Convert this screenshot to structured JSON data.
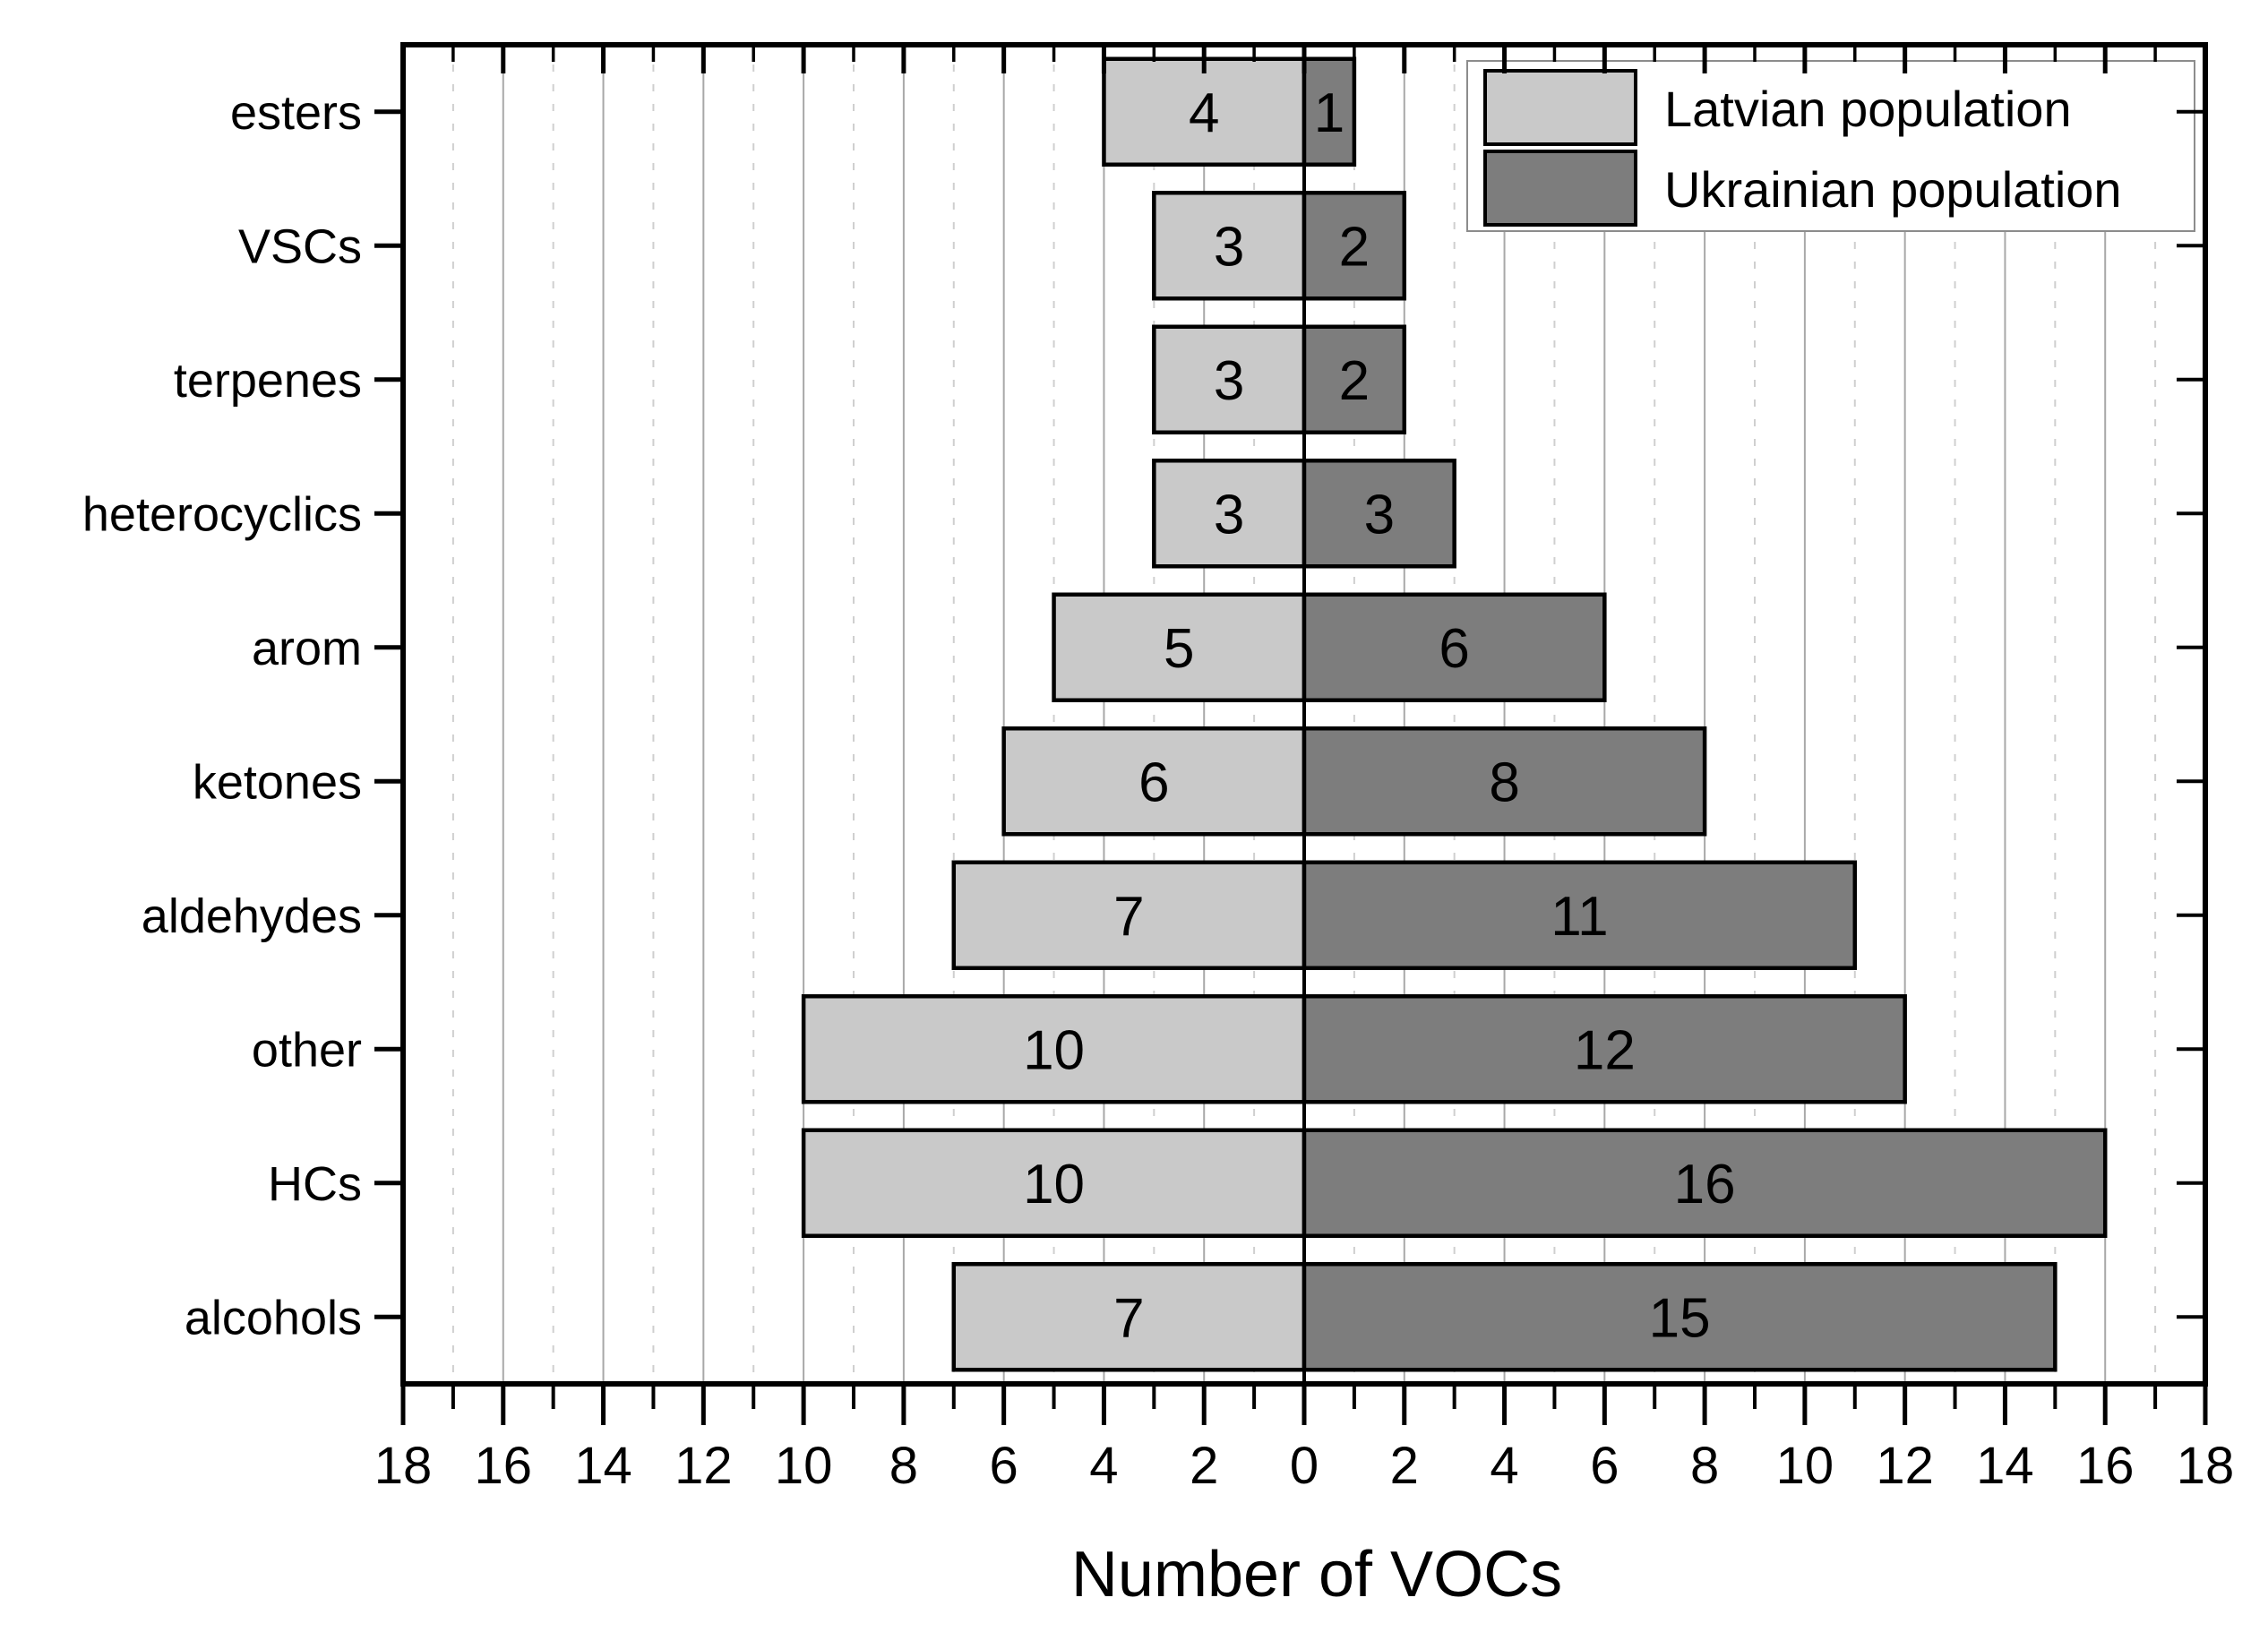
{
  "chart_data": {
    "type": "bar",
    "subtype": "diverging-horizontal",
    "categories": [
      "esters",
      "VSCs",
      "terpenes",
      "heterocyclics",
      "arom",
      "ketones",
      "aldehydes",
      "other",
      "HCs",
      "alcohols"
    ],
    "series": [
      {
        "name": "Latvian population",
        "side": "left",
        "color": "#c9c9c9",
        "values": [
          4,
          3,
          3,
          3,
          5,
          6,
          7,
          10,
          10,
          7
        ]
      },
      {
        "name": "Ukrainian population",
        "side": "right",
        "color": "#7d7d7d",
        "values": [
          1,
          2,
          2,
          3,
          6,
          8,
          11,
          12,
          16,
          15
        ]
      }
    ],
    "xlabel": "Number of VOCs",
    "x_tick_labels": [
      "18",
      "16",
      "14",
      "12",
      "10",
      "8",
      "6",
      "4",
      "2",
      "0",
      "2",
      "4",
      "6",
      "8",
      "10",
      "12",
      "14",
      "16",
      "18"
    ],
    "xlim": [
      -18,
      18
    ],
    "x_tick_step": 2,
    "grid": {
      "solid_at": "even",
      "dashed_at": "odd",
      "solid_color": "#a8a8a8",
      "dashed_color": "#cfcfcf"
    },
    "bar_border_color": "#000000",
    "zero_line_color": "#000000",
    "value_label_color": "#000000",
    "legend_position": "top-right"
  },
  "legend": {
    "items": [
      {
        "label": "Latvian population",
        "color": "#c9c9c9"
      },
      {
        "label": "Ukrainian population",
        "color": "#7d7d7d"
      }
    ]
  }
}
